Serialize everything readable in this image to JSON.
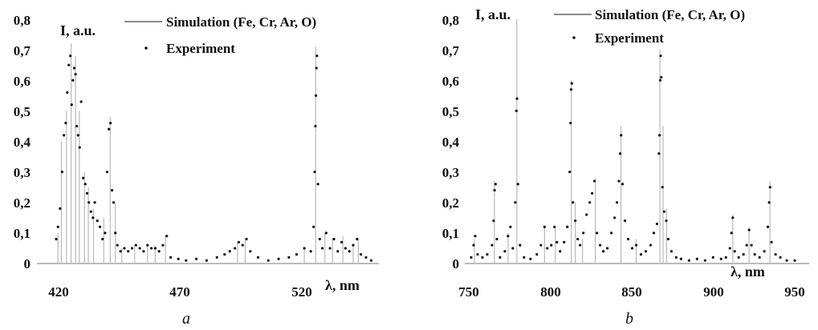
{
  "chart_data": [
    {
      "type": "line",
      "panel_label": "a",
      "ylabel": "I, a.u.",
      "xlabel": "λ, nm",
      "xlim": [
        412,
        545
      ],
      "ylim": [
        0,
        0.8
      ],
      "x_ticks": [
        {
          "v": 420,
          "label": "420"
        },
        {
          "v": 470,
          "label": "470"
        },
        {
          "v": 520,
          "label": "520"
        }
      ],
      "y_ticks": [
        {
          "v": 0,
          "label": "0"
        },
        {
          "v": 0.1,
          "label": "0,1"
        },
        {
          "v": 0.2,
          "label": "0,2"
        },
        {
          "v": 0.3,
          "label": "0,3"
        },
        {
          "v": 0.4,
          "label": "0,4"
        },
        {
          "v": 0.5,
          "label": "0,5"
        },
        {
          "v": 0.6,
          "label": "0,6"
        },
        {
          "v": 0.7,
          "label": "0,7"
        },
        {
          "v": 0.8,
          "label": "0,8"
        }
      ],
      "legend": [
        {
          "label": "Simulation (Fe, Cr, Ar, O)",
          "style": "line"
        },
        {
          "label": "Experiment",
          "style": "dots"
        }
      ],
      "series": [
        {
          "name": "Simulation (Fe, Cr, Ar, O)",
          "color": "#b9b9b9",
          "peaks": [
            [
              420.2,
              0.1
            ],
            [
              421.5,
              0.4
            ],
            [
              423.5,
              0.5
            ],
            [
              425.3,
              0.72
            ],
            [
              427,
              0.68
            ],
            [
              428.5,
              0.5
            ],
            [
              430.5,
              0.3
            ],
            [
              432,
              0.25
            ],
            [
              434,
              0.18
            ],
            [
              438,
              0.15
            ],
            [
              440.5,
              0.48
            ],
            [
              442.5,
              0.2
            ],
            [
              445,
              0.05
            ],
            [
              450,
              0.06
            ],
            [
              455,
              0.06
            ],
            [
              458,
              0.06
            ],
            [
              462,
              0.09
            ],
            [
              490,
              0.07
            ],
            [
              493,
              0.08
            ],
            [
              516,
              0.05
            ],
            [
              520.4,
              0.71
            ],
            [
              524,
              0.1
            ],
            [
              527,
              0.08
            ],
            [
              531,
              0.09
            ],
            [
              535,
              0.06
            ],
            [
              537,
              0.08
            ]
          ]
        },
        {
          "name": "Experiment",
          "color": "#111111",
          "points": [
            [
              419.5,
              0.08
            ],
            [
              420.2,
              0.12
            ],
            [
              421,
              0.18
            ],
            [
              421.8,
              0.3
            ],
            [
              422.5,
              0.42
            ],
            [
              423.2,
              0.46
            ],
            [
              423.8,
              0.56
            ],
            [
              424.4,
              0.65
            ],
            [
              425,
              0.68
            ],
            [
              425.5,
              0.52
            ],
            [
              426,
              0.6
            ],
            [
              426.5,
              0.64
            ],
            [
              427,
              0.62
            ],
            [
              427.5,
              0.45
            ],
            [
              428,
              0.42
            ],
            [
              428.6,
              0.38
            ],
            [
              429.2,
              0.53
            ],
            [
              430,
              0.28
            ],
            [
              430.8,
              0.26
            ],
            [
              431.5,
              0.23
            ],
            [
              432.2,
              0.2
            ],
            [
              433,
              0.17
            ],
            [
              433.8,
              0.15
            ],
            [
              434.5,
              0.2
            ],
            [
              435.5,
              0.14
            ],
            [
              436.5,
              0.12
            ],
            [
              437.5,
              0.08
            ],
            [
              438.5,
              0.1
            ],
            [
              439.3,
              0.3
            ],
            [
              440,
              0.44
            ],
            [
              440.6,
              0.46
            ],
            [
              441.2,
              0.24
            ],
            [
              441.8,
              0.2
            ],
            [
              442.5,
              0.1
            ],
            [
              443.3,
              0.06
            ],
            [
              444.5,
              0.04
            ],
            [
              446,
              0.05
            ],
            [
              447.5,
              0.04
            ],
            [
              449,
              0.05
            ],
            [
              450.5,
              0.06
            ],
            [
              452,
              0.05
            ],
            [
              453.5,
              0.04
            ],
            [
              455,
              0.06
            ],
            [
              456.5,
              0.05
            ],
            [
              458,
              0.05
            ],
            [
              459.5,
              0.04
            ],
            [
              461,
              0.06
            ],
            [
              462.5,
              0.09
            ],
            [
              464,
              0.02
            ],
            [
              467,
              0.015
            ],
            [
              470,
              0.01
            ],
            [
              474,
              0.015
            ],
            [
              478,
              0.01
            ],
            [
              482,
              0.02
            ],
            [
              485,
              0.03
            ],
            [
              487,
              0.04
            ],
            [
              489,
              0.05
            ],
            [
              490.5,
              0.07
            ],
            [
              492,
              0.06
            ],
            [
              493.5,
              0.08
            ],
            [
              495,
              0.04
            ],
            [
              498,
              0.02
            ],
            [
              502,
              0.01
            ],
            [
              506,
              0.015
            ],
            [
              510,
              0.02
            ],
            [
              513,
              0.03
            ],
            [
              516,
              0.05
            ],
            [
              518.5,
              0.04
            ],
            [
              519.6,
              0.12
            ],
            [
              520,
              0.3
            ],
            [
              520.3,
              0.45
            ],
            [
              520.5,
              0.55
            ],
            [
              520.7,
              0.64
            ],
            [
              520.9,
              0.68
            ],
            [
              521.3,
              0.26
            ],
            [
              522,
              0.08
            ],
            [
              523,
              0.05
            ],
            [
              524.5,
              0.1
            ],
            [
              526,
              0.05
            ],
            [
              527.5,
              0.08
            ],
            [
              529,
              0.04
            ],
            [
              530.5,
              0.07
            ],
            [
              532,
              0.05
            ],
            [
              533.5,
              0.04
            ],
            [
              535,
              0.06
            ],
            [
              536.5,
              0.08
            ],
            [
              538,
              0.03
            ],
            [
              540,
              0.02
            ],
            [
              542,
              0.01
            ]
          ]
        }
      ]
    },
    {
      "type": "line",
      "panel_label": "b",
      "ylabel": "I, a.u.",
      "xlabel": "λ, nm",
      "xlim": [
        745,
        960
      ],
      "ylim": [
        0,
        0.8
      ],
      "x_ticks": [
        {
          "v": 750,
          "label": "750"
        },
        {
          "v": 800,
          "label": "800"
        },
        {
          "v": 850,
          "label": "850"
        },
        {
          "v": 900,
          "label": "900"
        },
        {
          "v": 950,
          "label": "950"
        }
      ],
      "y_ticks": [
        {
          "v": 0,
          "label": "0"
        },
        {
          "v": 0.1,
          "label": "0,1"
        },
        {
          "v": 0.2,
          "label": "0,2"
        },
        {
          "v": 0.3,
          "label": "0,3"
        },
        {
          "v": 0.4,
          "label": "0,4"
        },
        {
          "v": 0.5,
          "label": "0,5"
        },
        {
          "v": 0.6,
          "label": "0,6"
        },
        {
          "v": 0.7,
          "label": "0,7"
        },
        {
          "v": 0.8,
          "label": "0,8"
        }
      ],
      "legend": [
        {
          "label": "Simulation (Fe, Cr, Ar, O)",
          "style": "line"
        },
        {
          "label": "Experiment",
          "style": "dots"
        }
      ],
      "series": [
        {
          "name": "Simulation (Fe, Cr, Ar, O)",
          "color": "#b9b9b9",
          "peaks": [
            [
              751,
              0.08
            ],
            [
              763.5,
              0.27
            ],
            [
              772,
              0.1
            ],
            [
              777.5,
              0.8
            ],
            [
              794.8,
              0.12
            ],
            [
              801.5,
              0.12
            ],
            [
              811.5,
              0.6
            ],
            [
              814,
              0.2
            ],
            [
              818.5,
              0.08
            ],
            [
              826.5,
              0.28
            ],
            [
              842.5,
              0.45
            ],
            [
              852,
              0.08
            ],
            [
              866.8,
              0.7
            ],
            [
              868.8,
              0.45
            ],
            [
              871,
              0.18
            ],
            [
              912.3,
              0.16
            ],
            [
              922.5,
              0.12
            ],
            [
              935.5,
              0.27
            ]
          ]
        },
        {
          "name": "Experiment",
          "color": "#111111",
          "points": [
            [
              749,
              0.02
            ],
            [
              750.5,
              0.06
            ],
            [
              751.5,
              0.09
            ],
            [
              753,
              0.03
            ],
            [
              756,
              0.02
            ],
            [
              759,
              0.03
            ],
            [
              762,
              0.06
            ],
            [
              763,
              0.14
            ],
            [
              763.6,
              0.24
            ],
            [
              764.2,
              0.26
            ],
            [
              765,
              0.08
            ],
            [
              767,
              0.02
            ],
            [
              770,
              0.04
            ],
            [
              772,
              0.09
            ],
            [
              773.5,
              0.12
            ],
            [
              775,
              0.05
            ],
            [
              776.5,
              0.2
            ],
            [
              777.2,
              0.5
            ],
            [
              777.6,
              0.54
            ],
            [
              778.2,
              0.26
            ],
            [
              779.5,
              0.06
            ],
            [
              782,
              0.02
            ],
            [
              786,
              0.015
            ],
            [
              790,
              0.03
            ],
            [
              792.5,
              0.06
            ],
            [
              794.8,
              0.12
            ],
            [
              796.5,
              0.05
            ],
            [
              799,
              0.06
            ],
            [
              801,
              0.12
            ],
            [
              802.5,
              0.07
            ],
            [
              804.5,
              0.04
            ],
            [
              807,
              0.07
            ],
            [
              809,
              0.12
            ],
            [
              810.5,
              0.3
            ],
            [
              811,
              0.46
            ],
            [
              811.4,
              0.57
            ],
            [
              811.8,
              0.59
            ],
            [
              812.5,
              0.2
            ],
            [
              814,
              0.14
            ],
            [
              815.5,
              0.08
            ],
            [
              817,
              0.06
            ],
            [
              819,
              0.1
            ],
            [
              821,
              0.16
            ],
            [
              823,
              0.2
            ],
            [
              824.5,
              0.23
            ],
            [
              826,
              0.27
            ],
            [
              827.5,
              0.1
            ],
            [
              829.5,
              0.06
            ],
            [
              831.5,
              0.04
            ],
            [
              834,
              0.05
            ],
            [
              836.5,
              0.1
            ],
            [
              838.5,
              0.15
            ],
            [
              840,
              0.2
            ],
            [
              841.2,
              0.27
            ],
            [
              842,
              0.36
            ],
            [
              842.6,
              0.42
            ],
            [
              843.5,
              0.26
            ],
            [
              845,
              0.14
            ],
            [
              847,
              0.08
            ],
            [
              849.5,
              0.05
            ],
            [
              852,
              0.06
            ],
            [
              855,
              0.03
            ],
            [
              858,
              0.04
            ],
            [
              861,
              0.06
            ],
            [
              863,
              0.1
            ],
            [
              865,
              0.13
            ],
            [
              866.2,
              0.36
            ],
            [
              866.6,
              0.42
            ],
            [
              867,
              0.6
            ],
            [
              867.3,
              0.68
            ],
            [
              867.7,
              0.61
            ],
            [
              868.4,
              0.25
            ],
            [
              869.5,
              0.17
            ],
            [
              870.8,
              0.14
            ],
            [
              872,
              0.08
            ],
            [
              874,
              0.04
            ],
            [
              877,
              0.02
            ],
            [
              880,
              0.015
            ],
            [
              885,
              0.01
            ],
            [
              890,
              0.015
            ],
            [
              895,
              0.01
            ],
            [
              900,
              0.02
            ],
            [
              905,
              0.015
            ],
            [
              908,
              0.02
            ],
            [
              910.5,
              0.05
            ],
            [
              911.5,
              0.1
            ],
            [
              912.3,
              0.15
            ],
            [
              913.5,
              0.04
            ],
            [
              916,
              0.02
            ],
            [
              919,
              0.03
            ],
            [
              921,
              0.06
            ],
            [
              922.5,
              0.11
            ],
            [
              924,
              0.06
            ],
            [
              926,
              0.03
            ],
            [
              929,
              0.02
            ],
            [
              932,
              0.04
            ],
            [
              934.2,
              0.12
            ],
            [
              935,
              0.2
            ],
            [
              935.6,
              0.25
            ],
            [
              936.5,
              0.07
            ],
            [
              939,
              0.03
            ],
            [
              942,
              0.02
            ],
            [
              946,
              0.01
            ],
            [
              951,
              0.01
            ]
          ]
        }
      ]
    }
  ]
}
